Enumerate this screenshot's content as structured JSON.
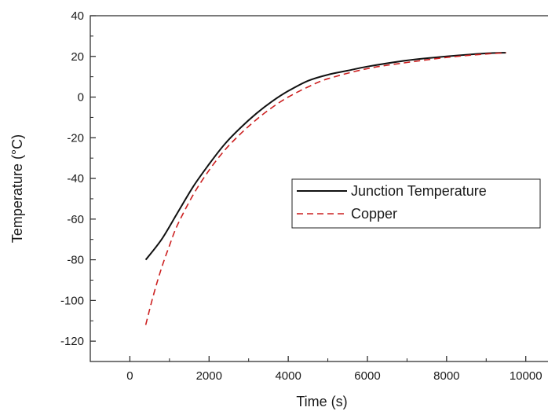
{
  "chart_data": {
    "type": "line",
    "xlabel": "Time (s)",
    "ylabel": "Temperature (°C)",
    "xlim": [
      -1000,
      10700
    ],
    "ylim": [
      -130,
      40
    ],
    "x_ticks": [
      0,
      2000,
      4000,
      6000,
      8000,
      10000
    ],
    "y_ticks": [
      40,
      20,
      0,
      -20,
      -40,
      -60,
      -80,
      -100,
      -120
    ],
    "grid": false,
    "legend_position": "center-right",
    "series": [
      {
        "name": "Junction Temperature",
        "color": "#111111",
        "style": "solid",
        "x": [
          400,
          800,
          1200,
          1600,
          2000,
          2400,
          2800,
          3200,
          3600,
          4000,
          4500,
          5000,
          5500,
          6000,
          7000,
          8000,
          9000,
          9500
        ],
        "y": [
          -80,
          -70,
          -57,
          -44,
          -33,
          -23,
          -15,
          -8,
          -2,
          3,
          8,
          11,
          13,
          15,
          18,
          20,
          21.5,
          21.8
        ]
      },
      {
        "name": "Copper",
        "color": "#cc2020",
        "style": "dashed",
        "x": [
          400,
          600,
          800,
          1000,
          1200,
          1600,
          2000,
          2400,
          2800,
          3200,
          3600,
          4000,
          4500,
          5000,
          6000,
          7000,
          8000,
          9000,
          9500
        ],
        "y": [
          -112,
          -97,
          -84,
          -73,
          -63,
          -48,
          -36,
          -26,
          -18,
          -11,
          -5,
          0,
          5,
          9,
          14,
          17,
          19.5,
          21.2,
          21.8
        ]
      }
    ]
  }
}
